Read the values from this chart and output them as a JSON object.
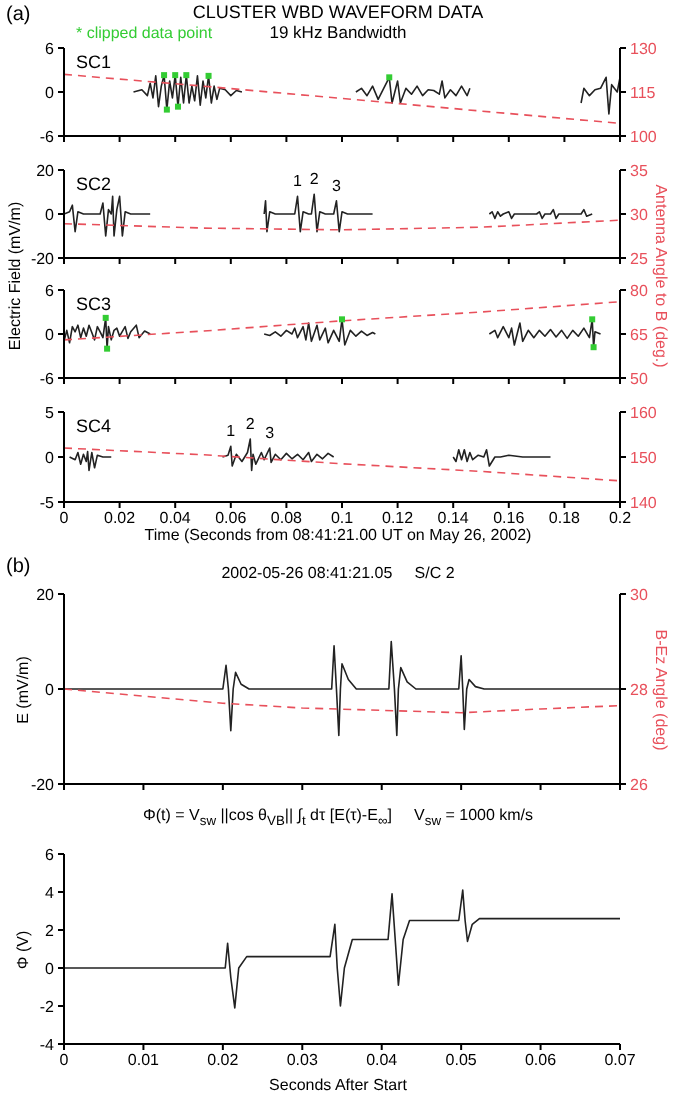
{
  "chart_data": [
    {
      "type": "line",
      "title": "CLUSTER WBD WAVEFORM DATA",
      "subtitle": "19 kHz Bandwidth",
      "annotations": [
        "(a)",
        "SC1"
      ],
      "legend": "top left",
      "marker": "none",
      "tick_labels": "y",
      "xlim": [
        0,
        0.2
      ],
      "xticks": [
        0,
        0.02,
        0.04,
        0.06,
        0.08,
        0.1,
        0.12,
        0.14,
        0.16,
        0.18,
        0.2
      ],
      "ylim": [
        -6,
        6
      ],
      "yticks": [
        -6,
        0,
        6
      ],
      "y2lim": [
        100,
        130
      ],
      "y2ticks": [
        100,
        115,
        130
      ],
      "series": [
        {
          "color": "#222222",
          "x": [
            0.025,
            0.028,
            0.03,
            0.031,
            0.032,
            0.033,
            0.034,
            0.035,
            0.036,
            0.037,
            0.038,
            0.039,
            0.04,
            0.041,
            0.042,
            0.043,
            0.044,
            0.045,
            0.046,
            0.047,
            0.048,
            0.049,
            0.05,
            0.051,
            0.052,
            0.053,
            0.054,
            0.055,
            0.056,
            0.058,
            0.06,
            0.062,
            0.064,
            0.085,
            0.105,
            0.107,
            0.109,
            0.111,
            0.113,
            0.115,
            0.117,
            0.118,
            0.12,
            0.121,
            0.123,
            0.125,
            0.127,
            0.129,
            0.131,
            0.133,
            0.135,
            0.136,
            0.137,
            0.139,
            0.141,
            0.143,
            0.145,
            0.146,
            0.165,
            0.186,
            0.187,
            0.189,
            0.191,
            0.193,
            0.195,
            0.196,
            0.197,
            0.199,
            0.2
          ],
          "values": [
            0,
            0.3,
            -0.5,
            1.2,
            -0.8,
            2.2,
            -2,
            0.8,
            2.3,
            -2.4,
            1.5,
            -0.8,
            2.3,
            -2,
            2,
            -1.5,
            2.3,
            -1.5,
            0.8,
            -1.2,
            2.2,
            -1.8,
            1.5,
            -0.8,
            2.2,
            -1.5,
            0.8,
            -1,
            0.5,
            0.3,
            -0.5,
            0.2,
            0,
            null,
            0,
            0.5,
            -0.5,
            0.8,
            -1,
            0.5,
            2,
            -1.5,
            1.5,
            -1.5,
            0.5,
            -0.3,
            0.8,
            -0.5,
            0.3,
            0.2,
            -0.3,
            1.5,
            -0.8,
            0.3,
            -0.5,
            0.8,
            -0.5,
            0.5,
            null,
            -1.5,
            0.5,
            -0.5,
            0.3,
            0.5,
            2,
            -3,
            1,
            0,
            2
          ]
        },
        {
          "type": "scatter",
          "name": "* clipped data point",
          "color": "#33cc33",
          "marker": "square",
          "x": [
            0.036,
            0.037,
            0.04,
            0.041,
            0.044,
            0.052,
            0.117
          ],
          "values": [
            2.3,
            -2.4,
            2.3,
            -2,
            2.3,
            2.2,
            2
          ]
        },
        {
          "color": "#e8505b",
          "axis": "y2",
          "line_style": "dashed",
          "x": [
            0,
            0.05,
            0.1,
            0.15,
            0.2
          ],
          "values": [
            121,
            117,
            112.8,
            108.5,
            104.3
          ]
        }
      ]
    },
    {
      "type": "line",
      "annotations": [
        "SC2",
        {
          "text": "1",
          "x": 0.084,
          "y": 8
        },
        {
          "text": "2",
          "x": 0.09,
          "y": 9
        },
        {
          "text": "3",
          "x": 0.098,
          "y": 6
        }
      ],
      "ylabel": "Electric Field (mV/m)",
      "y2label": "Antenna Angle to B (deg.)",
      "marker": "none",
      "tick_labels": "y",
      "xlim": [
        0,
        0.2
      ],
      "xticks": [
        0,
        0.02,
        0.04,
        0.06,
        0.08,
        0.1,
        0.12,
        0.14,
        0.16,
        0.18,
        0.2
      ],
      "ylim": [
        -20,
        20
      ],
      "yticks": [
        -20,
        0,
        20
      ],
      "y2lim": [
        25,
        35
      ],
      "y2ticks": [
        25,
        30,
        35
      ],
      "series": [
        {
          "color": "#222222",
          "x": [
            0,
            0.002,
            0.003,
            0.004,
            0.005,
            0.007,
            0.013,
            0.014,
            0.015,
            0.016,
            0.017,
            0.0175,
            0.018,
            0.019,
            0.02,
            0.021,
            0.022,
            0.024,
            0.031,
            0.05,
            0.072,
            0.0725,
            0.073,
            0.074,
            0.076,
            0.083,
            0.084,
            0.085,
            0.086,
            0.088,
            0.089,
            0.09,
            0.091,
            0.092,
            0.094,
            0.097,
            0.098,
            0.099,
            0.1,
            0.102,
            0.111,
            0.13,
            0.153,
            0.154,
            0.155,
            0.156,
            0.157,
            0.158,
            0.16,
            0.161,
            0.162,
            0.17,
            0.171,
            0.172,
            0.173,
            0.175,
            0.176,
            0.177,
            0.178,
            0.186,
            0.187,
            0.188,
            0.19
          ],
          "values": [
            0,
            1,
            4,
            -8,
            1,
            0,
            0,
            5,
            -10,
            2,
            0,
            8,
            -10,
            2,
            8,
            -10,
            1,
            0,
            0,
            null,
            0,
            6,
            -8,
            1,
            0,
            0,
            8,
            -8,
            1,
            0,
            0,
            9,
            -8,
            1,
            0,
            0,
            6,
            -8,
            1,
            0,
            0,
            null,
            0,
            1,
            -2,
            1,
            -1,
            0,
            1,
            -2,
            0,
            0,
            1,
            -2,
            0,
            0,
            2,
            -2,
            0,
            0,
            2,
            -1,
            0
          ]
        },
        {
          "color": "#e8505b",
          "axis": "y2",
          "line_style": "dashed",
          "x": [
            0,
            0.05,
            0.1,
            0.15,
            0.2
          ],
          "values": [
            28.9,
            28.4,
            28.2,
            28.5,
            29.3
          ]
        }
      ]
    },
    {
      "type": "line",
      "annotations": [
        "SC3"
      ],
      "marker": "none",
      "tick_labels": "y",
      "xlim": [
        0,
        0.2
      ],
      "xticks": [
        0,
        0.02,
        0.04,
        0.06,
        0.08,
        0.1,
        0.12,
        0.14,
        0.16,
        0.18,
        0.2
      ],
      "ylim": [
        -6,
        6
      ],
      "yticks": [
        -6,
        0,
        6
      ],
      "y2lim": [
        50,
        80
      ],
      "y2ticks": [
        50,
        65,
        80
      ],
      "series": [
        {
          "color": "#222222",
          "x": [
            0,
            0.001,
            0.002,
            0.003,
            0.004,
            0.005,
            0.006,
            0.007,
            0.008,
            0.009,
            0.01,
            0.011,
            0.012,
            0.013,
            0.014,
            0.015,
            0.0155,
            0.016,
            0.017,
            0.018,
            0.019,
            0.02,
            0.022,
            0.023,
            0.024,
            0.026,
            0.027,
            0.029,
            0.031,
            0.05,
            0.072,
            0.074,
            0.076,
            0.078,
            0.08,
            0.082,
            0.083,
            0.084,
            0.086,
            0.087,
            0.088,
            0.089,
            0.091,
            0.092,
            0.094,
            0.095,
            0.097,
            0.099,
            0.1,
            0.101,
            0.103,
            0.105,
            0.107,
            0.109,
            0.111,
            0.112,
            0.13,
            0.153,
            0.155,
            0.156,
            0.158,
            0.16,
            0.161,
            0.162,
            0.164,
            0.165,
            0.167,
            0.169,
            0.171,
            0.173,
            0.175,
            0.177,
            0.179,
            0.181,
            0.183,
            0.185,
            0.187,
            0.189,
            0.19,
            0.1905,
            0.191,
            0.193
          ],
          "values": [
            -1,
            0.5,
            -1.2,
            1,
            0.3,
            1.2,
            -0.5,
            0.8,
            -0.3,
            1.2,
            0.2,
            -0.8,
            1,
            0.3,
            -0.5,
            2.2,
            -2,
            1,
            -0.8,
            0.5,
            0.8,
            -0.3,
            1,
            -0.6,
            0.3,
            1.2,
            -0.5,
            0.4,
            0,
            null,
            0,
            -0.2,
            0.3,
            -0.3,
            0.5,
            0,
            0.8,
            -0.5,
            1,
            -0.8,
            1.5,
            -1,
            1.2,
            -0.8,
            0.8,
            -1.2,
            0.5,
            -1,
            2,
            -1.5,
            0.5,
            -0.3,
            0.4,
            -0.2,
            0.2,
            0,
            null,
            0,
            0.5,
            -0.5,
            1,
            -0.5,
            0.8,
            -1.5,
            1.5,
            -1,
            0.5,
            -0.5,
            0.5,
            -0.3,
            0.6,
            -0.4,
            0.5,
            -0.6,
            0.5,
            -0.3,
            0.8,
            -0.5,
            2,
            -1.8,
            0.3,
            0
          ]
        },
        {
          "type": "scatter",
          "color": "#33cc33",
          "marker": "square",
          "x": [
            0.015,
            0.0155,
            0.1,
            0.19,
            0.1905
          ],
          "values": [
            2.2,
            -2,
            2,
            2,
            -1.8
          ]
        },
        {
          "color": "#e8505b",
          "axis": "y2",
          "line_style": "dashed",
          "x": [
            0,
            0.05,
            0.1,
            0.15,
            0.2
          ],
          "values": [
            63,
            66,
            69.5,
            72.5,
            76
          ]
        }
      ]
    },
    {
      "type": "line",
      "annotations": [
        "SC4",
        {
          "text": "1",
          "x": 0.06,
          "y": 1.2
        },
        {
          "text": "2",
          "x": 0.067,
          "y": 2
        },
        {
          "text": "3",
          "x": 0.074,
          "y": 1
        }
      ],
      "xlabel": "Time (Seconds from 08:41:21.00 UT on May 26, 2002)",
      "marker": "none",
      "xlim": [
        0,
        0.2
      ],
      "xticks": [
        0,
        0.02,
        0.04,
        0.06,
        0.08,
        0.1,
        0.12,
        0.14,
        0.16,
        0.18,
        0.2
      ],
      "ylim": [
        -5,
        5
      ],
      "yticks": [
        -5,
        0,
        5
      ],
      "y2lim": [
        140,
        160
      ],
      "y2ticks": [
        140,
        150,
        160
      ],
      "series": [
        {
          "color": "#222222",
          "x": [
            0.002,
            0.004,
            0.005,
            0.006,
            0.007,
            0.008,
            0.0085,
            0.009,
            0.01,
            0.011,
            0.012,
            0.014,
            0.017,
            0.035,
            0.057,
            0.059,
            0.06,
            0.0605,
            0.062,
            0.064,
            0.066,
            0.067,
            0.0675,
            0.068,
            0.069,
            0.071,
            0.072,
            0.074,
            0.0745,
            0.076,
            0.078,
            0.08,
            0.082,
            0.084,
            0.086,
            0.088,
            0.089,
            0.091,
            0.093,
            0.095,
            0.097,
            0.12,
            0.14,
            0.141,
            0.142,
            0.143,
            0.144,
            0.145,
            0.146,
            0.147,
            0.149,
            0.151,
            0.152,
            0.153,
            0.154,
            0.155,
            0.157,
            0.16,
            0.165,
            0.17,
            0.175
          ],
          "values": [
            0,
            -0.3,
            0.5,
            -0.8,
            0.3,
            -0.5,
            0.6,
            -1.5,
            0.5,
            -1.2,
            0.2,
            0,
            0,
            null,
            0,
            0.2,
            1.2,
            -1,
            0.3,
            -0.5,
            0.5,
            2,
            -1.5,
            0.3,
            -0.8,
            0.5,
            -0.3,
            1,
            -0.6,
            0.3,
            -0.3,
            0.4,
            -0.2,
            0.3,
            -0.3,
            0.5,
            -0.5,
            0.3,
            -0.2,
            0.4,
            0,
            null,
            0,
            -0.5,
            0.8,
            -0.3,
            0.8,
            -0.5,
            0.5,
            -0.3,
            0.2,
            0,
            0.8,
            -1,
            -0.5,
            0,
            0,
            0.2,
            0,
            0,
            0
          ]
        },
        {
          "color": "#e8505b",
          "axis": "y2",
          "line_style": "dashed",
          "x": [
            0,
            0.05,
            0.1,
            0.15,
            0.2
          ],
          "values": [
            152,
            150.5,
            148.5,
            146.8,
            144.7
          ]
        }
      ]
    },
    {
      "type": "line",
      "title": "2002-05-26 08:41:21.05     S/C 2",
      "annotations": [
        "(b)"
      ],
      "ylabel": "E (mV/m)",
      "y2label": "B-Ez Angle (deg)",
      "marker": "none",
      "tick_labels": "y",
      "xlim": [
        0,
        0.07
      ],
      "xticks": [
        0,
        0.01,
        0.02,
        0.03,
        0.04,
        0.05,
        0.06,
        0.07
      ],
      "ylim": [
        -20,
        20
      ],
      "yticks": [
        -20,
        0,
        20
      ],
      "y2lim": [
        26,
        30
      ],
      "y2ticks": [
        26,
        28,
        30
      ],
      "series": [
        {
          "color": "#222222",
          "x": [
            0,
            0.02,
            0.0204,
            0.0207,
            0.021,
            0.0213,
            0.0216,
            0.0223,
            0.0233,
            0.0337,
            0.034,
            0.0343,
            0.0346,
            0.0348,
            0.035,
            0.0358,
            0.0368,
            0.0409,
            0.0412,
            0.0416,
            0.0419,
            0.0421,
            0.0424,
            0.0432,
            0.0443,
            0.0497,
            0.05,
            0.0502,
            0.0504,
            0.0507,
            0.051,
            0.0518,
            0.0529,
            0.07
          ],
          "values": [
            0,
            0,
            5,
            0,
            -8.8,
            0,
            3.5,
            1,
            0,
            0,
            9.1,
            0,
            -9.8,
            0,
            5.3,
            2,
            0,
            0,
            10,
            0,
            -9.8,
            0,
            4.5,
            1.5,
            0,
            0,
            7,
            0,
            -8.5,
            0,
            2,
            0.5,
            0,
            0
          ]
        },
        {
          "color": "#e8505b",
          "axis": "y2",
          "line_style": "dashed",
          "x": [
            0,
            0.01,
            0.02,
            0.03,
            0.04,
            0.05,
            0.06,
            0.07
          ],
          "values": [
            28,
            27.85,
            27.7,
            27.6,
            27.55,
            27.5,
            27.58,
            27.65
          ]
        }
      ]
    },
    {
      "type": "line",
      "title": "Φ(t) = V$_{sw}$ ||cos θ$_{VB}$|| ∫$_{t}$ dτ [E(τ)-E$_{∞}$]     V$_{sw}$ = 1000 km/s",
      "xlabel": "Seconds After Start",
      "ylabel": "Φ (V)",
      "marker": "none",
      "xlim": [
        0,
        0.07
      ],
      "xticks": [
        0,
        0.01,
        0.02,
        0.03,
        0.04,
        0.05,
        0.06,
        0.07
      ],
      "ylim": [
        -4,
        6
      ],
      "yticks": [
        -4,
        -2,
        0,
        2,
        4,
        6
      ],
      "series": [
        {
          "color": "#222222",
          "x": [
            0,
            0.0203,
            0.0206,
            0.021,
            0.0215,
            0.022,
            0.023,
            0.0335,
            0.0341,
            0.0344,
            0.0348,
            0.0353,
            0.0363,
            0.0408,
            0.0413,
            0.0417,
            0.0421,
            0.0427,
            0.0435,
            0.0497,
            0.0502,
            0.0505,
            0.0508,
            0.0514,
            0.0523,
            0.07
          ],
          "values": [
            0,
            0,
            1.3,
            -0.5,
            -2.1,
            0,
            0.6,
            0.6,
            2.3,
            0,
            -2,
            0,
            1.5,
            1.5,
            3.9,
            1.5,
            -0.9,
            1.5,
            2.5,
            2.5,
            4.1,
            2.5,
            1.4,
            2.3,
            2.6,
            2.6
          ]
        }
      ]
    }
  ]
}
